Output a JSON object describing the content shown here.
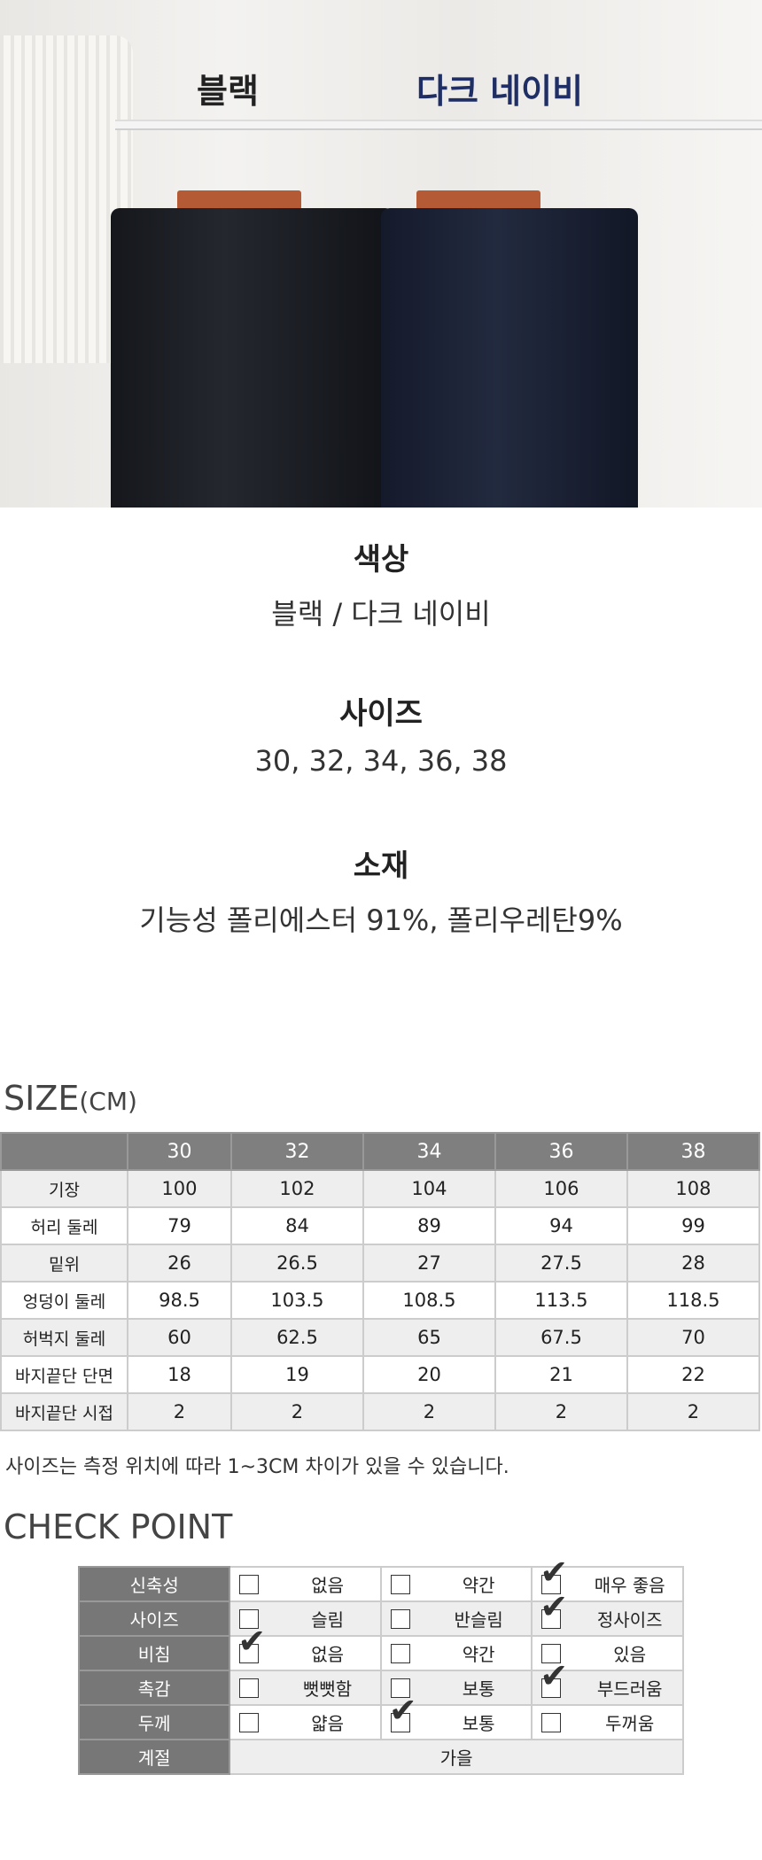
{
  "photo": {
    "label_black": "블랙",
    "label_navy": "다크 네이비",
    "navy_color": "#1f2f66"
  },
  "info": [
    {
      "heading": "색상",
      "value": "블랙 / 다크 네이비"
    },
    {
      "heading": "사이즈",
      "value": "30, 32, 34, 36, 38"
    },
    {
      "heading": "소재",
      "value": "기능성 폴리에스터 91%, 폴리우레탄9%"
    }
  ],
  "size_table": {
    "title": "SIZE",
    "unit": "(CM)",
    "columns": [
      "",
      "30",
      "32",
      "34",
      "36",
      "38"
    ],
    "rows": [
      [
        "기장",
        "100",
        "102",
        "104",
        "106",
        "108"
      ],
      [
        "허리 둘레",
        "79",
        "84",
        "89",
        "94",
        "99"
      ],
      [
        "밑위",
        "26",
        "26.5",
        "27",
        "27.5",
        "28"
      ],
      [
        "엉덩이 둘레",
        "98.5",
        "103.5",
        "108.5",
        "113.5",
        "118.5"
      ],
      [
        "허벅지 둘레",
        "60",
        "62.5",
        "65",
        "67.5",
        "70"
      ],
      [
        "바지끝단 단면",
        "18",
        "19",
        "20",
        "21",
        "22"
      ],
      [
        "바지끝단 시접",
        "2",
        "2",
        "2",
        "2",
        "2"
      ]
    ],
    "note": "사이즈는 측정 위치에 따라 1~3CM 차이가 있을 수 있습니다."
  },
  "check_point": {
    "title": "CHECK POINT",
    "rows": [
      {
        "label": "신축성",
        "options": [
          "없음",
          "약간",
          "매우 좋음"
        ],
        "checked": 2
      },
      {
        "label": "사이즈",
        "options": [
          "슬림",
          "반슬림",
          "정사이즈"
        ],
        "checked": 2
      },
      {
        "label": "비침",
        "options": [
          "없음",
          "약간",
          "있음"
        ],
        "checked": 0
      },
      {
        "label": "촉감",
        "options": [
          "뻣뻣함",
          "보통",
          "부드러움"
        ],
        "checked": 2
      },
      {
        "label": "두께",
        "options": [
          "얇음",
          "보통",
          "두꺼움"
        ],
        "checked": 1
      }
    ],
    "season": {
      "label": "계절",
      "value": "가을"
    }
  }
}
